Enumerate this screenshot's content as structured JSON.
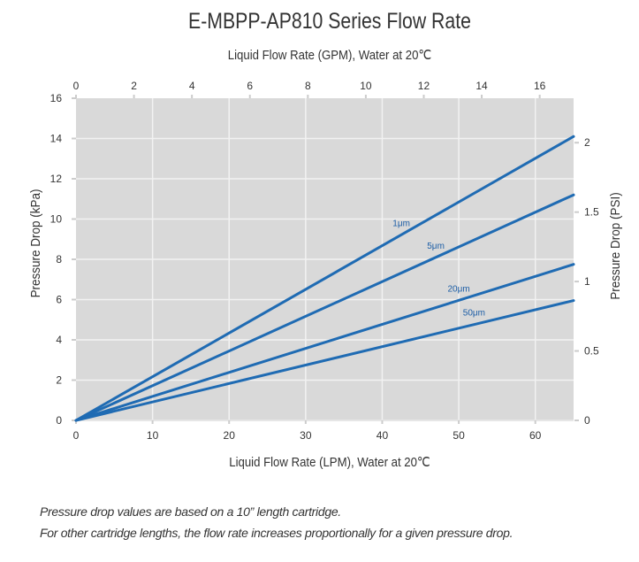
{
  "chart_data": {
    "type": "line",
    "title": "E-MBPP-AP810 Series Flow Rate",
    "xlabel": "Liquid Flow Rate (LPM), Water at 20℃",
    "x2label": "Liquid Flow Rate (GPM), Water at 20℃",
    "ylabel": "Pressure Drop (kPa)",
    "y2label": "Pressure Drop (PSI)",
    "xlim": [
      0,
      65
    ],
    "ylim": [
      0,
      16
    ],
    "x2lim": [
      0,
      17.17
    ],
    "y2lim": [
      0,
      2.32
    ],
    "xticks": [
      "0",
      "10",
      "20",
      "30",
      "40",
      "50",
      "60"
    ],
    "xtick_values": [
      0,
      10,
      20,
      30,
      40,
      50,
      60
    ],
    "yticks": [
      "0",
      "2",
      "4",
      "6",
      "8",
      "10",
      "12",
      "14",
      "16"
    ],
    "ytick_values": [
      0,
      2,
      4,
      6,
      8,
      10,
      12,
      14,
      16
    ],
    "x2ticks": [
      "0",
      "2",
      "4",
      "6",
      "8",
      "10",
      "12",
      "14",
      "16"
    ],
    "x2tick_values": [
      0,
      2,
      4,
      6,
      8,
      10,
      12,
      14,
      16
    ],
    "y2ticks": [
      "0",
      "0.5",
      "1",
      "1.5",
      "2"
    ],
    "y2tick_values": [
      0,
      0.5,
      1,
      1.5,
      2
    ],
    "grid": true,
    "series": [
      {
        "name": "1μm",
        "x": [
          0,
          65
        ],
        "values": [
          0,
          14.1
        ]
      },
      {
        "name": "5μm",
        "x": [
          0,
          65
        ],
        "values": [
          0,
          11.2
        ]
      },
      {
        "name": "20μm",
        "x": [
          0,
          65
        ],
        "values": [
          0,
          7.75
        ]
      },
      {
        "name": "50μm",
        "x": [
          0,
          65
        ],
        "values": [
          0,
          5.95
        ]
      }
    ],
    "label_at_x": [
      42.5,
      47,
      50,
      52
    ],
    "colors": {
      "line": "#1f6bb3",
      "label": "#1d5ea6",
      "plot_bg": "#d9d9d9",
      "grid": "#f2f2f2",
      "text": "#333333"
    }
  },
  "notes": [
    "Pressure drop values are based on a 10” length cartridge.",
    "For other cartridge lengths, the flow rate increases proportionally for a given pressure drop."
  ]
}
